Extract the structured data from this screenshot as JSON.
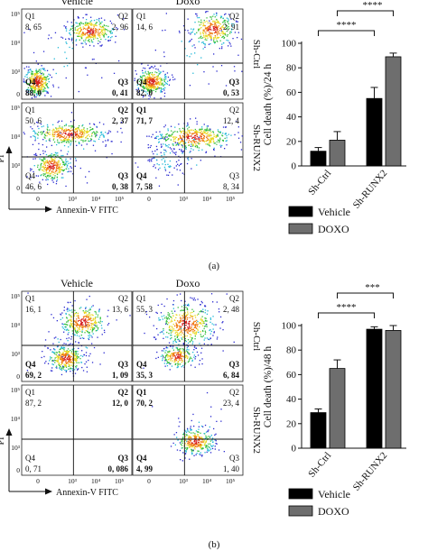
{
  "chart_data": [
    {
      "type": "scatter",
      "panel": "a",
      "conditions": [
        "Vehicle",
        "Doxo"
      ],
      "rows": [
        "Sh-Ctrl",
        "Sh-RUNX2"
      ],
      "xlabel": "Annexin-V FITC",
      "ylabel": "PI",
      "y_ticks": [
        "10⁵",
        "10⁴",
        "10³",
        "0"
      ],
      "x_ticks": [
        "0",
        "10³",
        "10⁴",
        "10⁵"
      ],
      "quadrant_names": [
        "Q1",
        "Q2",
        "Q3",
        "Q4"
      ],
      "quadrants": [
        {
          "row": "Sh-Ctrl",
          "condition": "Vehicle",
          "Q1": "8, 65",
          "Q2": "2, 96",
          "Q3": "0, 41",
          "Q4": "88, 0"
        },
        {
          "row": "Sh-Ctrl",
          "condition": "Doxo",
          "Q1": "14, 6",
          "Q2": "2, 91",
          "Q3": "0, 53",
          "Q4": "82, 0"
        },
        {
          "row": "Sh-RUNX2",
          "condition": "Vehicle",
          "Q1": "50, 6",
          "Q2": "2, 37",
          "Q3": "0, 38",
          "Q4": "46, 6"
        },
        {
          "row": "Sh-RUNX2",
          "condition": "Doxo",
          "Q1": "71, 7",
          "Q2": "12, 4",
          "Q3": "8, 34",
          "Q4": "7, 58"
        }
      ]
    },
    {
      "type": "bar",
      "panel": "a",
      "categories": [
        "Sh-Ctrl",
        "Sh-RUNX2"
      ],
      "series": [
        {
          "name": "Vehicle",
          "values": [
            12,
            55
          ],
          "errors": [
            3,
            9
          ],
          "color": "#000000"
        },
        {
          "name": "DOXO",
          "values": [
            21,
            89
          ],
          "errors": [
            7,
            3
          ],
          "color": "#6e6e6e"
        }
      ],
      "ylabel": "Cell death (%)/24 h",
      "ylim": [
        0,
        100
      ],
      "y_ticks": [
        0,
        20,
        40,
        60,
        80,
        100
      ],
      "significance": [
        "****",
        "****"
      ],
      "legend": "bottom"
    },
    {
      "type": "scatter",
      "panel": "b",
      "conditions": [
        "Vehicle",
        "Doxo"
      ],
      "rows": [
        "Sh-Ctrl",
        "Sh-RUNX2"
      ],
      "xlabel": "Annexin-V FITC",
      "ylabel": "PI",
      "y_ticks": [
        "10⁵",
        "10⁴",
        "10³",
        "0"
      ],
      "x_ticks": [
        "0",
        "10³",
        "10⁴",
        "10⁵"
      ],
      "quadrant_names": [
        "Q1",
        "Q2",
        "Q3",
        "Q4"
      ],
      "quadrants": [
        {
          "row": "Sh-Ctrl",
          "condition": "Vehicle",
          "Q1": "16, 1",
          "Q2": "13, 6",
          "Q3": "1, 09",
          "Q4": "69, 2"
        },
        {
          "row": "Sh-Ctrl",
          "condition": "Doxo",
          "Q1": "55, 3",
          "Q2": "2, 48",
          "Q3": "6, 84",
          "Q4": "35, 3"
        },
        {
          "row": "Sh-RUNX2",
          "condition": "Vehicle",
          "Q1": "87, 2",
          "Q2": "12, 0",
          "Q3": "0, 086",
          "Q4": "0, 71"
        },
        {
          "row": "Sh-RUNX2",
          "condition": "Doxo",
          "Q1": "70, 2",
          "Q2": "23, 4",
          "Q3": "1, 40",
          "Q4": "4, 99"
        }
      ]
    },
    {
      "type": "bar",
      "panel": "b",
      "categories": [
        "Sh-Ctrl",
        "Sh-RUNX2"
      ],
      "series": [
        {
          "name": "Vehicle",
          "values": [
            29,
            97
          ],
          "errors": [
            3,
            2
          ],
          "color": "#000000"
        },
        {
          "name": "DOXO",
          "values": [
            65,
            96
          ],
          "errors": [
            7,
            4
          ],
          "color": "#6e6e6e"
        }
      ],
      "ylabel": "Cell death (%)/48 h",
      "ylim": [
        0,
        100
      ],
      "y_ticks": [
        0,
        20,
        40,
        60,
        80,
        100
      ],
      "significance": [
        "****",
        "***"
      ],
      "legend": "bottom"
    }
  ],
  "panel_labels": [
    "(a)",
    "(b)"
  ]
}
